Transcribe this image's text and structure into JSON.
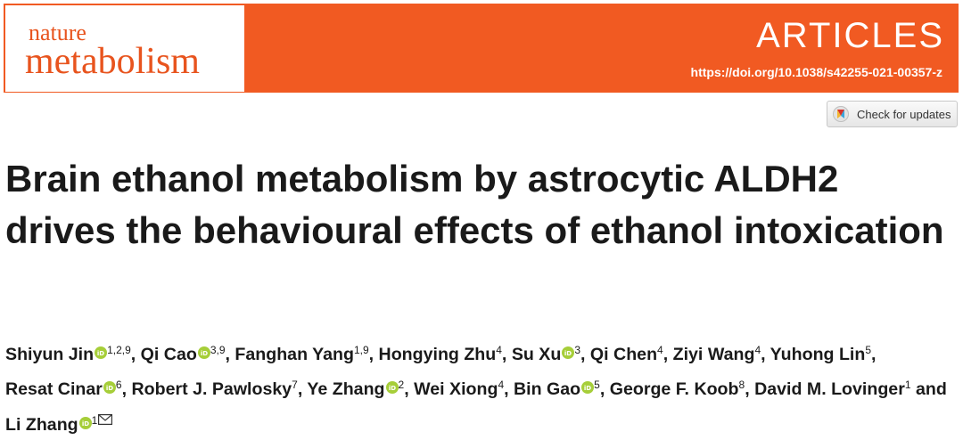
{
  "journal": {
    "name_line1": "nature",
    "name_line2": "metabolism",
    "brand_color": "#f15a22"
  },
  "header": {
    "section": "ARTICLES",
    "doi": "https://doi.org/10.1038/s42255-021-00357-z"
  },
  "updates_button": {
    "label": "Check for updates"
  },
  "article": {
    "title": "Brain ethanol metabolism by astrocytic ALDH2 drives the behavioural effects of ethanol intoxication"
  },
  "authors": [
    {
      "name": "Shiyun Jin",
      "aff": "1,2,9",
      "orcid": true,
      "sep": ", "
    },
    {
      "name": "Qi Cao",
      "aff": "3,9",
      "orcid": true,
      "sep": ", "
    },
    {
      "name": "Fanghan Yang",
      "aff": "1,9",
      "orcid": false,
      "sep": ", "
    },
    {
      "name": "Hongying Zhu",
      "aff": "4",
      "orcid": false,
      "sep": ", "
    },
    {
      "name": "Su Xu",
      "aff": "3",
      "orcid": true,
      "sep": ", "
    },
    {
      "name": "Qi Chen",
      "aff": "4",
      "orcid": false,
      "sep": ", "
    },
    {
      "name": "Ziyi Wang",
      "aff": "4",
      "orcid": false,
      "sep": ", "
    },
    {
      "name": "Yuhong Lin",
      "aff": "5",
      "orcid": false,
      "sep": ", "
    },
    {
      "name": "Resat Cinar",
      "aff": "6",
      "orcid": true,
      "sep": ", "
    },
    {
      "name": "Robert J. Pawlosky",
      "aff": "7",
      "orcid": false,
      "sep": ", "
    },
    {
      "name": "Ye Zhang",
      "aff": "2",
      "orcid": true,
      "sep": ", "
    },
    {
      "name": "Wei Xiong",
      "aff": "4",
      "orcid": false,
      "sep": ", "
    },
    {
      "name": "Bin Gao",
      "aff": "5",
      "orcid": true,
      "sep": ", "
    },
    {
      "name": "George F. Koob",
      "aff": "8",
      "orcid": false,
      "sep": ", "
    },
    {
      "name": "David M. Lovinger",
      "aff": "1",
      "orcid": false,
      "sep": " and "
    },
    {
      "name": "Li Zhang",
      "aff": "1",
      "orcid": true,
      "sep": "",
      "corresponding": true
    }
  ],
  "icons": {
    "orcid": "orcid-icon",
    "mail": "envelope-icon",
    "updates": "crossmark-icon",
    "orcid_color": "#a6ce39"
  }
}
